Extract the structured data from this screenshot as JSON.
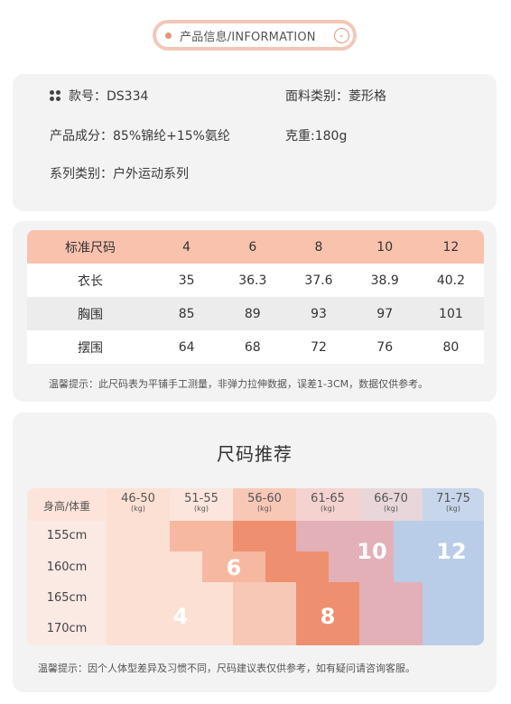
{
  "header": {
    "title": "产品信息/INFORMATION",
    "button_glyph": "⌄"
  },
  "info": {
    "item_no": "款号：DS334",
    "fabric": "面料类别：菱形格",
    "composition": "产品成分：85%锦纶+15%氨纶",
    "weight": "克重:180g",
    "series": "系列类别：户外运动系列"
  },
  "size_table": {
    "header": [
      "标准尺码",
      "4",
      "6",
      "8",
      "10",
      "12"
    ],
    "rows": [
      [
        "衣长",
        "35",
        "36.3",
        "37.6",
        "38.9",
        "40.2"
      ],
      [
        "胸围",
        "85",
        "89",
        "93",
        "97",
        "101"
      ],
      [
        "摆围",
        "64",
        "68",
        "72",
        "76",
        "80"
      ]
    ],
    "note": "温馨提示：此尺码表为平铺手工测量，非弹力拉伸数据，误差1-3CM，数据仅供参考。"
  },
  "recommend": {
    "title": "尺码推荐",
    "corner": "身高/体重",
    "unit": "(kg)",
    "weights": [
      "46-50",
      "51-55",
      "56-60",
      "61-65",
      "66-70",
      "71-75"
    ],
    "heights": [
      "155cm",
      "160cm",
      "165cm",
      "170cm"
    ],
    "sizes": {
      "s4": "4",
      "s6": "6",
      "s8": "8",
      "s10": "10",
      "s12": "12"
    },
    "note": "温馨提示：因个人体型差异及习惯不同，尺码建议表仅供参考，如有疑问请咨询客服。",
    "colors": {
      "size4": "#fde0d4",
      "size6": "#f7b8a1",
      "size8": "#ee9070",
      "size10": "#e3b0b7",
      "size12": "#b9cde8"
    }
  }
}
